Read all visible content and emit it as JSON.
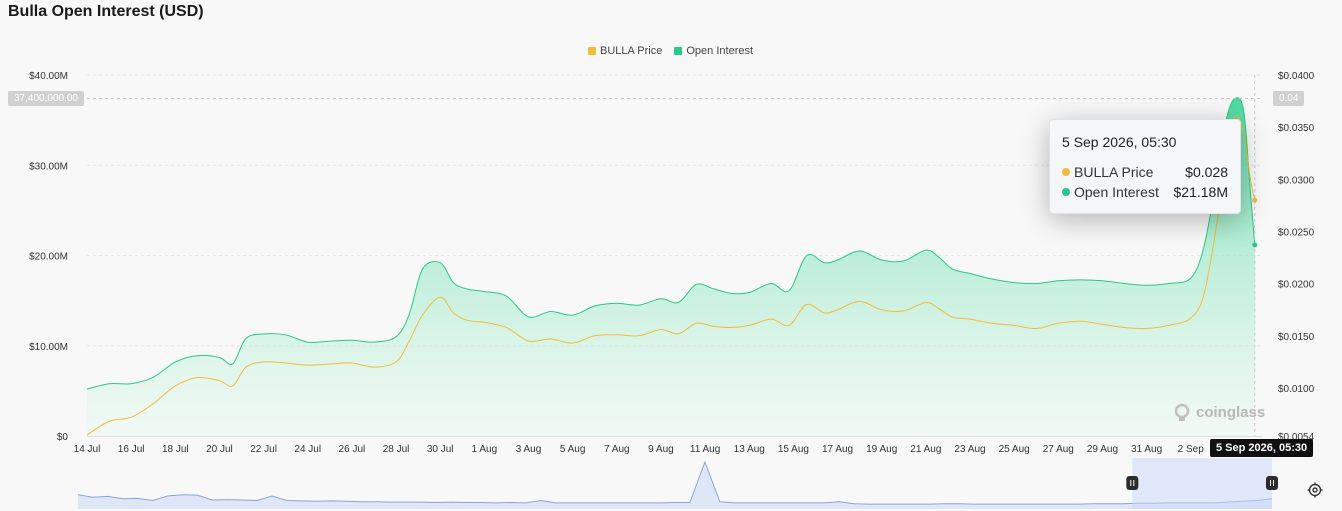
{
  "page": {
    "title": "Bulla Open Interest (USD)"
  },
  "legend": [
    {
      "label": "BULLA Price",
      "color": "#f0bd3a"
    },
    {
      "label": "Open Interest",
      "color": "#27c88a"
    }
  ],
  "tooltip": {
    "title": "5 Sep 2026, 05:30",
    "rows": [
      {
        "label": "BULLA Price",
        "value": "$0.028",
        "color": "#f0bd3a"
      },
      {
        "label": "Open Interest",
        "value": "$21.18M",
        "color": "#27c88a"
      }
    ]
  },
  "crosshair": {
    "x_label": "5 Sep 2026, 05:30",
    "y_left": "37,400,000.00",
    "y_right": "0.04"
  },
  "watermark": "coinglass",
  "icons": {
    "settings": "settings-icon",
    "watermark": "coinglass-logo-icon"
  },
  "chart_data": {
    "type": "area",
    "title": "Bulla Open Interest (USD)",
    "x_tick_labels": [
      "14 Jul",
      "16 Jul",
      "18 Jul",
      "20 Jul",
      "22 Jul",
      "24 Jul",
      "26 Jul",
      "28 Jul",
      "30 Jul",
      "1 Aug",
      "3 Aug",
      "5 Aug",
      "7 Aug",
      "9 Aug",
      "11 Aug",
      "13 Aug",
      "15 Aug",
      "17 Aug",
      "19 Aug",
      "21 Aug",
      "23 Aug",
      "25 Aug",
      "27 Aug",
      "29 Aug",
      "31 Aug",
      "2 Sep"
    ],
    "y_left": {
      "ticks": [
        "$0",
        "$10.00M",
        "$20.00M",
        "$30.00M",
        "$40.00M"
      ],
      "range": [
        0,
        40000000
      ]
    },
    "y_right": {
      "ticks": [
        "$0.0054",
        "$0.0100",
        "$0.0150",
        "$0.0200",
        "$0.0250",
        "$0.0300",
        "$0.0350",
        "$0.0400"
      ],
      "range": [
        0.0054,
        0.04
      ]
    },
    "grid": true,
    "legend_position": "top-center",
    "series": [
      {
        "name": "Open Interest",
        "axis": "left",
        "color": "#27c88a",
        "points": [
          [
            0,
            5.2
          ],
          [
            0.5,
            5.8
          ],
          [
            1,
            5.8
          ],
          [
            1.5,
            6.5
          ],
          [
            2,
            8.2
          ],
          [
            2.5,
            8.9
          ],
          [
            3,
            8.7
          ],
          [
            3.3,
            8.0
          ],
          [
            3.6,
            10.8
          ],
          [
            4,
            11.3
          ],
          [
            4.5,
            11.2
          ],
          [
            5,
            10.4
          ],
          [
            5.5,
            10.5
          ],
          [
            6,
            10.6
          ],
          [
            6.5,
            10.4
          ],
          [
            7,
            11.0
          ],
          [
            7.3,
            13.5
          ],
          [
            7.6,
            18.5
          ],
          [
            8,
            19.2
          ],
          [
            8.3,
            17.0
          ],
          [
            8.6,
            16.3
          ],
          [
            9,
            16.0
          ],
          [
            9.5,
            15.5
          ],
          [
            10,
            13.2
          ],
          [
            10.5,
            13.8
          ],
          [
            11,
            13.4
          ],
          [
            11.5,
            14.4
          ],
          [
            12,
            14.7
          ],
          [
            12.5,
            14.5
          ],
          [
            13,
            15.2
          ],
          [
            13.4,
            14.8
          ],
          [
            13.8,
            16.8
          ],
          [
            14.2,
            16.3
          ],
          [
            14.6,
            15.8
          ],
          [
            15,
            15.9
          ],
          [
            15.5,
            16.9
          ],
          [
            15.9,
            16.1
          ],
          [
            16.3,
            20.0
          ],
          [
            16.7,
            19.2
          ],
          [
            17,
            19.5
          ],
          [
            17.5,
            20.5
          ],
          [
            18,
            19.5
          ],
          [
            18.5,
            19.4
          ],
          [
            19,
            20.6
          ],
          [
            19.3,
            19.8
          ],
          [
            19.6,
            18.5
          ],
          [
            20,
            18.0
          ],
          [
            20.5,
            17.4
          ],
          [
            21,
            17.0
          ],
          [
            21.5,
            16.9
          ],
          [
            22,
            17.2
          ],
          [
            22.5,
            17.3
          ],
          [
            23,
            17.2
          ],
          [
            23.5,
            16.9
          ],
          [
            24,
            16.7
          ],
          [
            24.5,
            16.9
          ],
          [
            25,
            17.5
          ],
          [
            25.3,
            21.0
          ],
          [
            25.6,
            29.0
          ],
          [
            25.8,
            35.0
          ],
          [
            26.0,
            37.4
          ],
          [
            26.2,
            36.0
          ],
          [
            26.35,
            27.0
          ],
          [
            26.45,
            21.18
          ]
        ]
      },
      {
        "name": "BULLA Price",
        "axis": "right",
        "color": "#f0bd3a",
        "points": [
          [
            0,
            0.0055
          ],
          [
            0.5,
            0.0068
          ],
          [
            1,
            0.0072
          ],
          [
            1.5,
            0.0085
          ],
          [
            2,
            0.0102
          ],
          [
            2.5,
            0.011
          ],
          [
            3,
            0.0107
          ],
          [
            3.3,
            0.0102
          ],
          [
            3.6,
            0.012
          ],
          [
            4,
            0.0125
          ],
          [
            4.5,
            0.0124
          ],
          [
            5,
            0.0122
          ],
          [
            5.5,
            0.0123
          ],
          [
            6,
            0.0124
          ],
          [
            6.5,
            0.012
          ],
          [
            7,
            0.0125
          ],
          [
            7.3,
            0.0145
          ],
          [
            7.6,
            0.017
          ],
          [
            8,
            0.0187
          ],
          [
            8.3,
            0.0172
          ],
          [
            8.6,
            0.0165
          ],
          [
            9,
            0.0163
          ],
          [
            9.5,
            0.0158
          ],
          [
            10,
            0.0145
          ],
          [
            10.5,
            0.0147
          ],
          [
            11,
            0.0143
          ],
          [
            11.5,
            0.015
          ],
          [
            12,
            0.0151
          ],
          [
            12.5,
            0.015
          ],
          [
            13,
            0.0156
          ],
          [
            13.4,
            0.0152
          ],
          [
            13.8,
            0.0162
          ],
          [
            14.2,
            0.0159
          ],
          [
            14.6,
            0.0158
          ],
          [
            15,
            0.016
          ],
          [
            15.5,
            0.0166
          ],
          [
            15.9,
            0.016
          ],
          [
            16.3,
            0.018
          ],
          [
            16.7,
            0.0172
          ],
          [
            17,
            0.0175
          ],
          [
            17.5,
            0.0183
          ],
          [
            18,
            0.0175
          ],
          [
            18.5,
            0.0174
          ],
          [
            19,
            0.0182
          ],
          [
            19.3,
            0.0176
          ],
          [
            19.6,
            0.0168
          ],
          [
            20,
            0.0166
          ],
          [
            20.5,
            0.0162
          ],
          [
            21,
            0.016
          ],
          [
            21.5,
            0.0157
          ],
          [
            22,
            0.0162
          ],
          [
            22.5,
            0.0164
          ],
          [
            23,
            0.0161
          ],
          [
            23.5,
            0.0158
          ],
          [
            24,
            0.0157
          ],
          [
            24.5,
            0.016
          ],
          [
            25,
            0.0167
          ],
          [
            25.3,
            0.019
          ],
          [
            25.6,
            0.026
          ],
          [
            25.8,
            0.032
          ],
          [
            26.0,
            0.036
          ],
          [
            26.2,
            0.0345
          ],
          [
            26.35,
            0.03
          ],
          [
            26.45,
            0.028
          ]
        ]
      }
    ]
  },
  "navigator": {
    "series": [
      3,
      2.4,
      2.6,
      2.0,
      2.1,
      1.6,
      2.7,
      3.0,
      2.9,
      1.7,
      1.8,
      1.7,
      1.6,
      2.7,
      1.6,
      1.5,
      1.4,
      1.5,
      1.4,
      1.3,
      1.3,
      1.2,
      1.2,
      1.2,
      1.1,
      1.2,
      1.1,
      1.1,
      1.0,
      1.1,
      1.0,
      1.6,
      1.0,
      1.0,
      1.0,
      1.0,
      1.0,
      1.0,
      1.0,
      1.0,
      1.1,
      1.1,
      11,
      1.3,
      1.0,
      1.0,
      1.0,
      1.0,
      1.0,
      1.0,
      1.0,
      1.3,
      0.8,
      0.7,
      0.7,
      0.7,
      0.7,
      0.7,
      0.8,
      0.8,
      0.7,
      0.7,
      0.7,
      0.7,
      0.7,
      0.7,
      0.7,
      0.7,
      0.8,
      0.8,
      0.8,
      0.9,
      0.9,
      1.0,
      1.0,
      1.0,
      1.0,
      1.2,
      1.4,
      1.6,
      2.0
    ],
    "selection": [
      0.883,
      1.0
    ]
  }
}
